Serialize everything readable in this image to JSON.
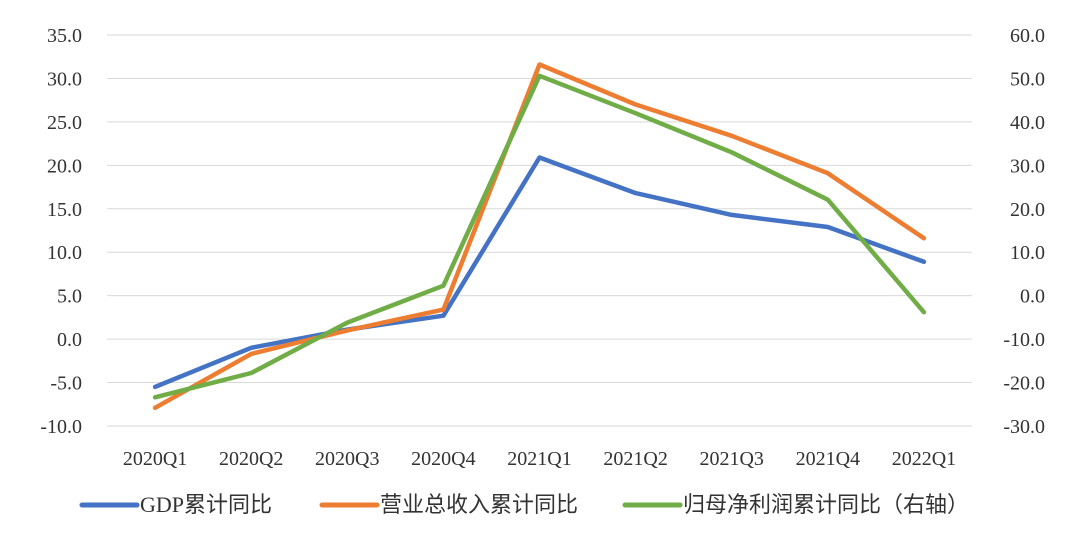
{
  "chart_data": {
    "type": "line",
    "title": "",
    "categories": [
      "2020Q1",
      "2020Q2",
      "2020Q3",
      "2020Q4",
      "2021Q1",
      "2021Q2",
      "2021Q3",
      "2021Q4",
      "2022Q1"
    ],
    "left_axis": {
      "ylim": [
        -10,
        35
      ],
      "ticks": [
        "-10.0",
        "-5.0",
        "0.0",
        "5.0",
        "10.0",
        "15.0",
        "20.0",
        "25.0",
        "30.0",
        "35.0"
      ]
    },
    "right_axis": {
      "ylim": [
        -30,
        60
      ],
      "ticks": [
        "-30.0",
        "-20.0",
        "-10.0",
        "0.0",
        "10.0",
        "20.0",
        "30.0",
        "40.0",
        "50.0",
        "60.0"
      ]
    },
    "grid": true,
    "legend_position": "bottom",
    "series": [
      {
        "name": "GDP累计同比",
        "axis": "left",
        "color": "#4472c4",
        "values": [
          -5.5,
          -1.0,
          1.1,
          2.7,
          20.9,
          16.8,
          14.3,
          12.9,
          8.9
        ]
      },
      {
        "name": "营业总收入累计同比",
        "axis": "left",
        "color": "#ed7d31",
        "values": [
          -7.9,
          -1.7,
          1.0,
          3.4,
          31.6,
          27.0,
          23.4,
          19.1,
          11.6
        ]
      },
      {
        "name": "归母净利润累计同比（右轴）",
        "axis": "right",
        "color": "#70ad47",
        "values": [
          -23.4,
          -17.8,
          -6.2,
          2.3,
          50.6,
          42.0,
          33.0,
          22.1,
          -3.8
        ]
      }
    ]
  }
}
